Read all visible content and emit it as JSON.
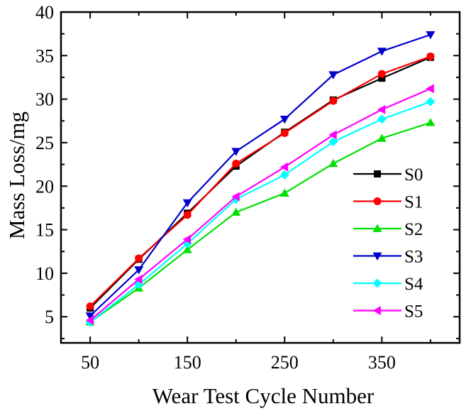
{
  "chart_data": {
    "type": "line",
    "title": "",
    "xlabel": "Wear Test Cycle Number",
    "ylabel": "Mass Loss/mg",
    "x": [
      50,
      100,
      150,
      200,
      250,
      300,
      350,
      400
    ],
    "xlim": [
      20,
      430
    ],
    "ylim": [
      2,
      40
    ],
    "xticks": [
      50,
      150,
      250,
      350
    ],
    "xticks_minor": [
      100,
      200,
      300,
      400
    ],
    "yticks": [
      5,
      10,
      15,
      20,
      25,
      30,
      35,
      40
    ],
    "legend_position": "right",
    "grid": false,
    "series": [
      {
        "name": "S0",
        "color": "#000000",
        "marker": "square",
        "values": [
          6.0,
          11.6,
          16.9,
          22.3,
          26.2,
          29.9,
          32.4,
          34.8
        ]
      },
      {
        "name": "S1",
        "color": "#ff0000",
        "marker": "circle",
        "values": [
          6.2,
          11.7,
          16.7,
          22.6,
          26.1,
          29.8,
          32.9,
          34.9
        ]
      },
      {
        "name": "S2",
        "color": "#00e000",
        "marker": "triangle-up",
        "values": [
          4.4,
          8.3,
          12.7,
          17.0,
          19.2,
          22.6,
          25.5,
          27.3
        ]
      },
      {
        "name": "S3",
        "color": "#0000cc",
        "marker": "triangle-down",
        "values": [
          5.1,
          10.4,
          18.1,
          24.0,
          27.7,
          32.8,
          35.5,
          37.4
        ]
      },
      {
        "name": "S4",
        "color": "#00ffff",
        "marker": "diamond",
        "values": [
          4.4,
          8.7,
          13.4,
          18.5,
          21.3,
          25.1,
          27.7,
          29.7
        ]
      },
      {
        "name": "S5",
        "color": "#ff00ff",
        "marker": "triangle-left",
        "values": [
          4.6,
          9.3,
          13.9,
          18.8,
          22.2,
          25.9,
          28.8,
          31.2
        ]
      }
    ]
  }
}
